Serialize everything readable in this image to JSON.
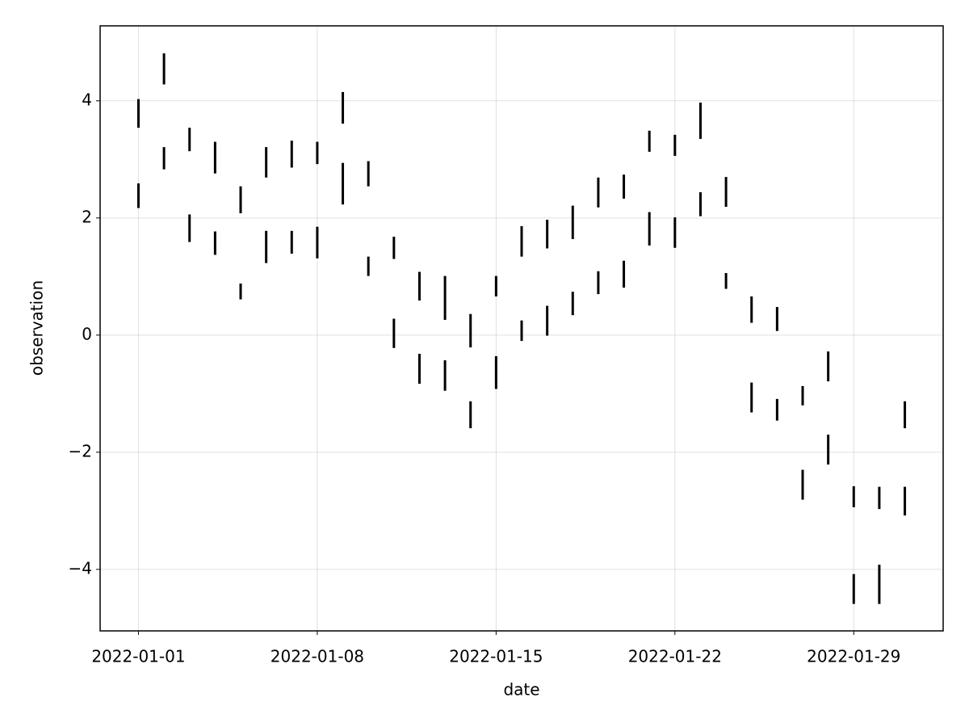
{
  "chart_data": {
    "type": "rangebar",
    "x_label": "date",
    "y_label": "observation",
    "x": [
      "2022-01-01",
      "2022-01-02",
      "2022-01-03",
      "2022-01-04",
      "2022-01-05",
      "2022-01-06",
      "2022-01-07",
      "2022-01-08",
      "2022-01-09",
      "2022-01-10",
      "2022-01-11",
      "2022-01-12",
      "2022-01-13",
      "2022-01-14",
      "2022-01-15",
      "2022-01-16",
      "2022-01-17",
      "2022-01-18",
      "2022-01-19",
      "2022-01-20",
      "2022-01-21",
      "2022-01-22",
      "2022-01-23",
      "2022-01-24",
      "2022-01-25",
      "2022-01-26",
      "2022-01-27",
      "2022-01-28",
      "2022-01-29",
      "2022-01-30",
      "2022-01-31"
    ],
    "series": [
      {
        "color": "#000000",
        "low": [
          3.54,
          4.28,
          3.14,
          2.76,
          2.08,
          2.69,
          2.86,
          2.92,
          3.61,
          2.54,
          1.3,
          0.59,
          0.26,
          -0.21,
          0.66,
          1.34,
          1.48,
          1.64,
          2.18,
          2.33,
          3.13,
          3.06,
          3.35,
          2.19,
          0.21,
          0.07,
          -1.2,
          -0.79,
          -2.94,
          -2.97,
          -1.59
        ],
        "high": [
          4.03,
          4.81,
          3.54,
          3.3,
          2.54,
          3.21,
          3.32,
          3.3,
          4.15,
          2.97,
          1.68,
          1.08,
          1.01,
          0.36,
          1.01,
          1.86,
          1.97,
          2.21,
          2.69,
          2.74,
          3.49,
          3.42,
          3.97,
          2.7,
          0.66,
          0.48,
          -0.87,
          -0.28,
          -2.58,
          -2.59,
          -1.13
        ]
      },
      {
        "color": "#000000",
        "low": [
          2.17,
          2.83,
          1.59,
          1.37,
          0.61,
          1.23,
          1.39,
          1.31,
          2.23,
          1.01,
          -0.22,
          -0.83,
          -0.95,
          -1.59,
          -0.92,
          -0.1,
          -0.01,
          0.34,
          0.7,
          0.81,
          1.53,
          1.49,
          2.03,
          0.79,
          -1.32,
          -1.46,
          -2.81,
          -2.21,
          -4.59,
          -4.59,
          -3.08
        ],
        "high": [
          2.59,
          3.21,
          2.06,
          1.77,
          0.88,
          1.78,
          1.78,
          1.85,
          2.94,
          1.34,
          0.28,
          -0.32,
          -0.43,
          -1.13,
          -0.36,
          0.25,
          0.5,
          0.74,
          1.09,
          1.27,
          2.1,
          2.01,
          2.44,
          1.06,
          -0.81,
          -1.09,
          -2.3,
          -1.7,
          -4.08,
          -3.92,
          -2.59
        ]
      }
    ],
    "xlim": [
      "2021-12-30T12:00:00Z",
      "2022-02-01T12:00:00Z"
    ],
    "xticks": [
      "2022-01-01",
      "2022-01-08",
      "2022-01-15",
      "2022-01-22",
      "2022-01-29"
    ],
    "ylim": [
      -5.05,
      5.28
    ],
    "yticks": [
      {
        "value": -4,
        "label": "−4"
      },
      {
        "value": -2,
        "label": "−2"
      },
      0,
      2,
      4
    ],
    "grid": true
  }
}
